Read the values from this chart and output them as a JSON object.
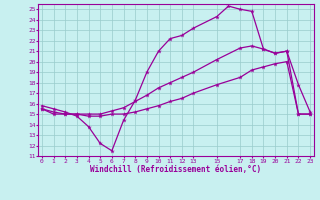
{
  "xlabel": "Windchill (Refroidissement éolien,°C)",
  "bg_color": "#c8f0f0",
  "line_color": "#990099",
  "grid_color": "#99cccc",
  "line3_x": [
    0,
    1,
    2,
    3,
    4,
    5,
    6,
    7,
    8,
    9,
    10,
    11,
    12,
    13,
    15,
    16,
    17,
    18,
    19,
    20,
    21,
    22,
    23
  ],
  "line3_y": [
    15.8,
    15.5,
    15.2,
    14.8,
    13.8,
    12.2,
    11.5,
    14.4,
    16.3,
    19.0,
    21.0,
    22.2,
    22.5,
    23.2,
    24.3,
    25.3,
    25.0,
    24.8,
    21.2,
    20.8,
    21.0,
    17.8,
    15.2
  ],
  "line2_x": [
    0,
    1,
    2,
    3,
    4,
    5,
    6,
    7,
    8,
    9,
    10,
    11,
    12,
    13,
    15,
    17,
    18,
    19,
    20,
    21,
    22,
    23
  ],
  "line2_y": [
    15.5,
    15.2,
    15.0,
    15.0,
    15.0,
    15.0,
    15.3,
    15.6,
    16.2,
    16.8,
    17.5,
    18.0,
    18.5,
    19.0,
    20.2,
    21.3,
    21.5,
    21.2,
    20.8,
    21.0,
    15.0,
    15.0
  ],
  "line1_x": [
    0,
    1,
    2,
    3,
    4,
    5,
    6,
    7,
    8,
    9,
    10,
    11,
    12,
    13,
    15,
    17,
    18,
    19,
    20,
    21,
    22,
    23
  ],
  "line1_y": [
    15.5,
    15.0,
    15.0,
    15.0,
    14.8,
    14.8,
    15.0,
    15.0,
    15.2,
    15.5,
    15.8,
    16.2,
    16.5,
    17.0,
    17.8,
    18.5,
    19.2,
    19.5,
    19.8,
    20.0,
    15.0,
    15.0
  ],
  "xlim": [
    -0.3,
    23.3
  ],
  "ylim": [
    11,
    25.5
  ],
  "xticks": [
    0,
    1,
    2,
    3,
    4,
    5,
    6,
    7,
    8,
    9,
    10,
    11,
    12,
    13,
    15,
    17,
    18,
    19,
    20,
    21,
    22,
    23
  ],
  "yticks": [
    11,
    12,
    13,
    14,
    15,
    16,
    17,
    18,
    19,
    20,
    21,
    22,
    23,
    24,
    25
  ]
}
